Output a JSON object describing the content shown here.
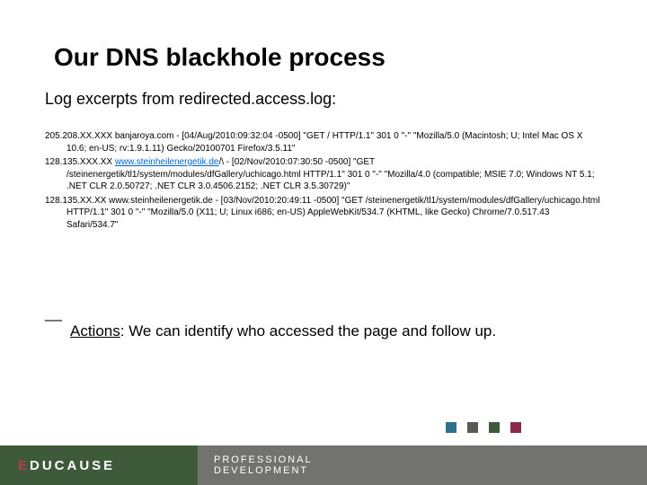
{
  "title": "Our DNS blackhole process",
  "subtitle": "Log excerpts from redirected.access.log:",
  "logs": {
    "entry1_ip": "205.208.XX.XXX ",
    "entry1_host": "banjaroya.com",
    "entry1_rest": " - [04/Aug/2010:09:32:04 -0500] \"GET / HTTP/1.1\" 301 0 \"-\" \"Mozilla/5.0 (Macintosh; U; Intel Mac OS X 10.6; en-US; rv:1.9.1.11) Gecko/20100701 Firefox/3.5.11\"",
    "entry2_ip": "128.135.XXX.XX ",
    "entry2_host": "www.steinheilenergetik.de",
    "entry2_mid": "/\\ - [02/Nov/2010:07:30:50 -0500] \"GET /steinenergetik/tl1/system/modules/dfGallery/uchicago.html HTTP/1.1\" 301 0 \"-\" \"Mozilla/4.0 (compatible; MSIE 7.0; Windows NT 5.1; .NET CLR 2.0.50727; .NET CLR 3.0.4506.2152; .NET CLR 3.5.30729)\"",
    "entry3_ip": "128.135.XX.XX ",
    "entry3_host": "www.steinheilenergetik.de",
    "entry3_rest": " - [03/Nov/2010:20:49:11 -0500] \"GET /steinenergetik/tl1/system/modules/dfGallery/uchicago.html HTTP/1.1\" 301 0 \"-\" \"Mozilla/5.0 (X11; U; Linux i686; en-US) AppleWebKit/534.7 (KHTML, like Gecko) Chrome/7.0.517.43 Safari/534.7\""
  },
  "actions": {
    "label": "Actions",
    "text": ": We can identify who accessed the page and follow up."
  },
  "squares": {
    "colors": [
      "#2f6f8f",
      "#5a5a55",
      "#3f5a3a",
      "#8a2a4a"
    ]
  },
  "footer": {
    "brand_prefix": "E",
    "brand_rest": "DUCAUSE",
    "sub_line1": "PROFESSIONAL",
    "sub_line2": "DEVELOPMENT",
    "left_bg": "#3f5a3a",
    "right_bg": "#72736e"
  }
}
